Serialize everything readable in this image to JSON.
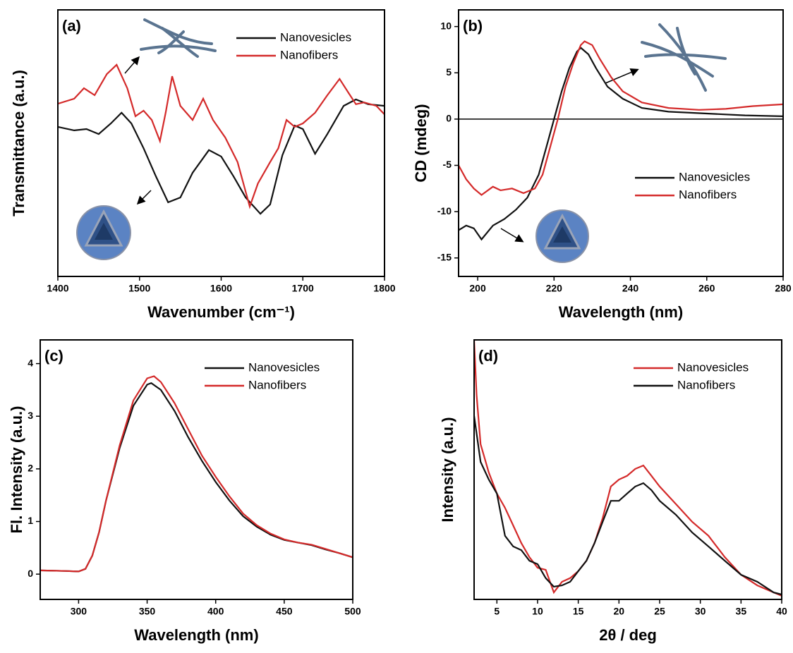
{
  "chart_data": [
    {
      "type": "line",
      "label": "(a)",
      "xlabel": "Wavenumber (cm⁻¹)",
      "ylabel": "Transmittance (a.u.)",
      "xlim": [
        1400,
        1800
      ],
      "xticks": [
        1400,
        1500,
        1600,
        1700,
        1800
      ],
      "ylim": [
        0,
        100
      ],
      "legend": "upper right",
      "series": [
        {
          "name": "Nanovesicles",
          "color": "#111111",
          "x": [
            1400,
            1420,
            1435,
            1450,
            1465,
            1478,
            1490,
            1505,
            1520,
            1535,
            1550,
            1565,
            1585,
            1600,
            1615,
            1630,
            1648,
            1660,
            1675,
            1690,
            1700,
            1715,
            1730,
            1750,
            1765,
            1780,
            1800
          ],
          "values": [
            56.1,
            54.8,
            55.3,
            53.4,
            57.4,
            61.4,
            57.4,
            48.1,
            37.6,
            27.8,
            29.6,
            38.9,
            47.4,
            45.0,
            37.6,
            29.6,
            23.5,
            27.0,
            45.5,
            56.6,
            55.3,
            46.0,
            53.4,
            64.0,
            66.4,
            64.6,
            64.0
          ]
        },
        {
          "name": "Nanofibers",
          "color": "#d42a2a",
          "x": [
            1400,
            1420,
            1432,
            1445,
            1460,
            1472,
            1485,
            1495,
            1505,
            1515,
            1525,
            1532,
            1540,
            1550,
            1565,
            1578,
            1590,
            1605,
            1620,
            1635,
            1645,
            1660,
            1670,
            1680,
            1690,
            1700,
            1715,
            1730,
            1745,
            1755,
            1765,
            1775,
            1790,
            1800
          ],
          "values": [
            64.8,
            66.7,
            70.6,
            68.0,
            75.9,
            79.4,
            70.6,
            60.1,
            62.2,
            58.7,
            50.8,
            61.4,
            75.1,
            64.0,
            58.7,
            66.7,
            58.7,
            52.1,
            42.9,
            26.2,
            34.9,
            42.9,
            48.1,
            58.7,
            56.1,
            57.4,
            61.4,
            68.0,
            74.1,
            69.3,
            64.6,
            65.3,
            64.0,
            60.8
          ]
        }
      ]
    },
    {
      "type": "line",
      "label": "(b)",
      "xlabel": "Wavelength (nm)",
      "ylabel": "CD (mdeg)",
      "xlim": [
        195,
        280
      ],
      "xticks": [
        200,
        220,
        240,
        260,
        280
      ],
      "ylim": [
        -17,
        11.8
      ],
      "yticks": [
        -15,
        -10,
        -5,
        0,
        5,
        10
      ],
      "hline": 0,
      "legend": "center right",
      "series": [
        {
          "name": "Nanovesicles",
          "color": "#111111",
          "x": [
            195,
            197,
            199,
            201,
            204,
            207,
            210,
            213,
            216,
            218,
            220,
            222,
            224,
            226,
            227,
            229,
            231,
            234,
            238,
            243,
            250,
            260,
            270,
            280
          ],
          "values": [
            -12,
            -11.5,
            -11.8,
            -13,
            -11.5,
            -10.8,
            -9.8,
            -8.5,
            -6,
            -3,
            0,
            3,
            5.5,
            7.3,
            7.7,
            7,
            5.5,
            3.5,
            2.2,
            1.2,
            0.8,
            0.6,
            0.4,
            0.3
          ]
        },
        {
          "name": "Nanofibers",
          "color": "#d42a2a",
          "x": [
            195,
            197,
            199,
            201,
            204,
            206,
            209,
            212,
            215,
            217,
            219,
            221,
            223,
            225,
            227,
            228,
            230,
            232,
            235,
            238,
            243,
            250,
            258,
            265,
            272,
            280
          ],
          "values": [
            -5,
            -6.5,
            -7.5,
            -8.2,
            -7.3,
            -7.7,
            -7.5,
            -8,
            -7.5,
            -6,
            -3,
            0,
            3.5,
            6,
            8,
            8.4,
            8,
            6.5,
            4.5,
            3,
            1.8,
            1.2,
            1,
            1.1,
            1.4,
            1.6
          ]
        }
      ]
    },
    {
      "type": "line",
      "label": "(c)",
      "xlabel": "Wavelength (nm)",
      "ylabel": "Fl. Intensity (a.u.)",
      "xlim": [
        272,
        500
      ],
      "xticks": [
        300,
        350,
        400,
        450,
        500
      ],
      "ylim": [
        -0.48,
        4.45
      ],
      "yticks": [
        0,
        1,
        2,
        3,
        4
      ],
      "legend": "upper right",
      "series": [
        {
          "name": "Nanovesicles",
          "color": "#111111",
          "x": [
            272,
            290,
            300,
            305,
            310,
            315,
            320,
            330,
            340,
            350,
            353,
            360,
            370,
            380,
            390,
            400,
            410,
            420,
            430,
            440,
            450,
            460,
            470,
            480,
            490,
            500
          ],
          "values": [
            0.07,
            0.06,
            0.05,
            0.1,
            0.35,
            0.8,
            1.4,
            2.4,
            3.2,
            3.6,
            3.63,
            3.5,
            3.1,
            2.6,
            2.15,
            1.75,
            1.4,
            1.1,
            0.9,
            0.75,
            0.65,
            0.6,
            0.55,
            0.47,
            0.4,
            0.32
          ]
        },
        {
          "name": "Nanofibers",
          "color": "#d42a2a",
          "x": [
            272,
            290,
            300,
            305,
            310,
            315,
            320,
            330,
            340,
            350,
            355,
            360,
            370,
            380,
            390,
            400,
            410,
            420,
            430,
            440,
            450,
            460,
            470,
            480,
            490,
            500
          ],
          "values": [
            0.07,
            0.06,
            0.05,
            0.1,
            0.35,
            0.8,
            1.4,
            2.45,
            3.3,
            3.72,
            3.76,
            3.65,
            3.25,
            2.75,
            2.25,
            1.85,
            1.48,
            1.15,
            0.93,
            0.77,
            0.66,
            0.6,
            0.56,
            0.48,
            0.4,
            0.32
          ]
        }
      ]
    },
    {
      "type": "line",
      "label": "(d)",
      "xlabel": "2θ / deg",
      "ylabel": "Intensity (a.u.)",
      "xlim": [
        2.2,
        40
      ],
      "xticks": [
        5,
        10,
        15,
        20,
        25,
        30,
        35,
        40
      ],
      "ylim": [
        0,
        100
      ],
      "legend": "upper right",
      "series": [
        {
          "name": "Nanovesicles",
          "color": "#d42a2a",
          "x": [
            2.2,
            2.5,
            3,
            4,
            5,
            6,
            7,
            8,
            9,
            10,
            11,
            12,
            13,
            14,
            15,
            16,
            17,
            18,
            19,
            20,
            21,
            22,
            23,
            24,
            25,
            27,
            29,
            31,
            33,
            35,
            37,
            39,
            40
          ],
          "values": [
            100,
            78.8,
            59.8,
            48.9,
            40.8,
            35.3,
            28.5,
            21.7,
            16.3,
            12.2,
            11.4,
            2.7,
            6.8,
            8.2,
            10.9,
            14.9,
            21.7,
            31.3,
            43.5,
            46.2,
            47.6,
            50.3,
            51.6,
            47.6,
            43.5,
            36.7,
            29.9,
            24.5,
            16.3,
            9.5,
            5.4,
            2.7,
            1.4
          ]
        },
        {
          "name": "Nanofibers",
          "color": "#111111",
          "x": [
            2.2,
            3,
            4,
            5,
            6,
            7,
            8,
            9,
            10,
            11,
            12,
            13,
            14,
            15,
            16,
            17,
            18,
            19,
            20,
            21,
            22,
            23,
            24,
            25,
            27,
            29,
            31,
            33,
            35,
            37,
            39,
            40
          ],
          "values": [
            70.7,
            53.0,
            46.2,
            40.8,
            24.5,
            20.4,
            19.0,
            14.9,
            13.6,
            8.2,
            4.9,
            5.4,
            6.8,
            10.9,
            14.9,
            21.7,
            29.9,
            38.0,
            38.0,
            40.8,
            43.5,
            44.8,
            42.1,
            38.0,
            32.6,
            25.8,
            20.4,
            14.9,
            9.5,
            6.8,
            2.7,
            1.9
          ]
        }
      ]
    }
  ]
}
